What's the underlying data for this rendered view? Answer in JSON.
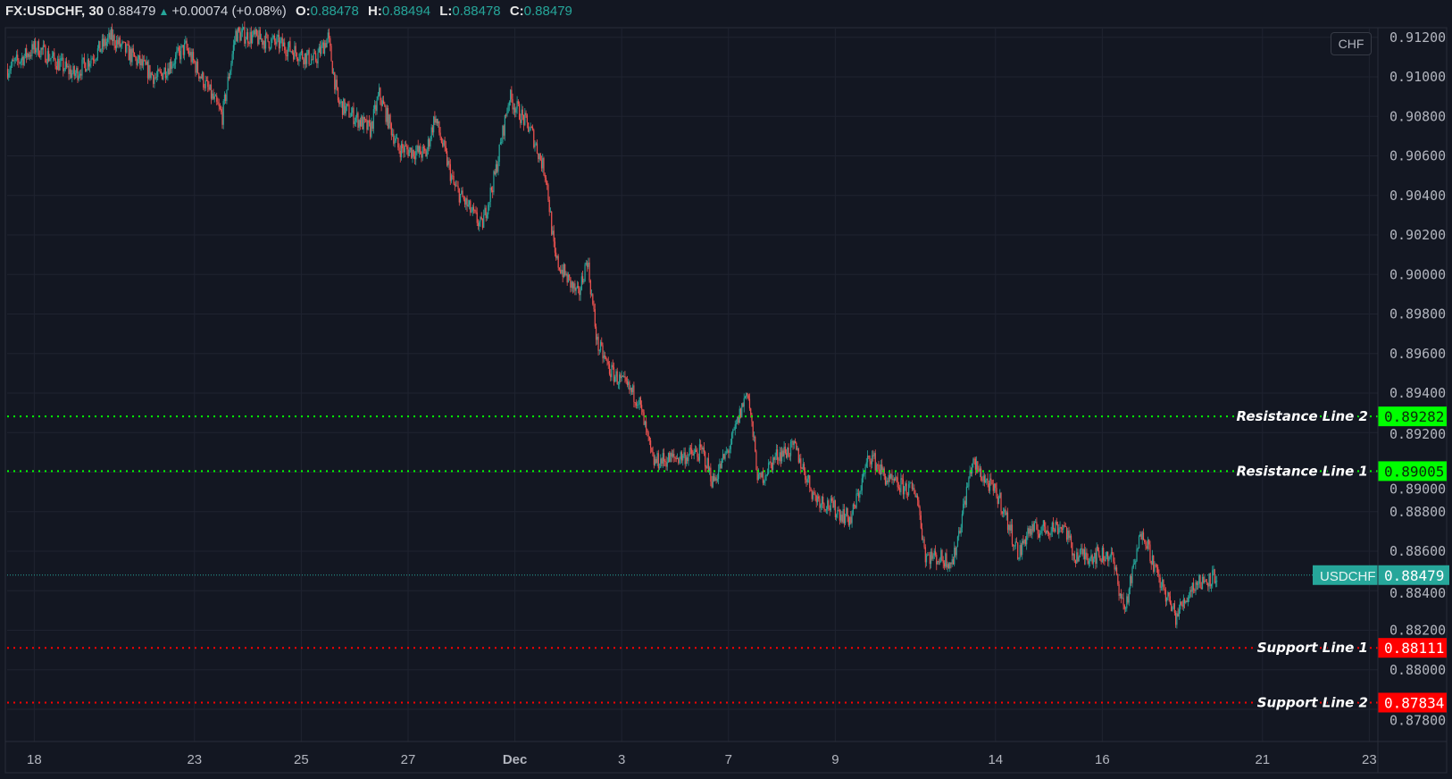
{
  "legend": {
    "symbol": "FX:USDCHF, 30",
    "last": "0.88479",
    "change": "+0.00074 (+0.08%)",
    "open_label": "O:",
    "open": "0.88478",
    "high_label": "H:",
    "high": "0.88494",
    "low_label": "L:",
    "low": "0.88478",
    "close_label": "C:",
    "close": "0.88479"
  },
  "currency_button": "CHF",
  "colors": {
    "background": "#131722",
    "up": "#26a69a",
    "down": "#ef5350",
    "resistance": "#00ff00",
    "support": "#ff0000",
    "last_price": "#26a69a"
  },
  "chart_data": {
    "type": "candlestick",
    "interval": "30",
    "symbol": "USDCHF",
    "ylim": [
      0.8775,
      0.9132
    ],
    "grid": true,
    "y_ticks": [
      "0.91200",
      "0.91000",
      "0.90800",
      "0.90600",
      "0.90400",
      "0.90200",
      "0.90000",
      "0.89800",
      "0.89600",
      "0.89400",
      "0.89200",
      "0.89000",
      "0.88800",
      "0.88600",
      "0.88400",
      "0.88200",
      "0.88000",
      "0.87800"
    ],
    "x_ticks": [
      "18",
      "23",
      "25",
      "27",
      "Dec",
      "3",
      "7",
      "9",
      "14",
      "16",
      "21",
      "23"
    ],
    "price_path": [
      [
        "11-17 12:00",
        0.9104
      ],
      [
        "11-18 01:00",
        0.9115
      ],
      [
        "11-18 18:00",
        0.9101
      ],
      [
        "11-19 10:30",
        0.912
      ],
      [
        "11-20 07:00",
        0.9099
      ],
      [
        "11-20 20:00",
        0.9115
      ],
      [
        "11-23 12:30",
        0.908
      ],
      [
        "11-23 18:30",
        0.9122
      ],
      [
        "11-24 13:30",
        0.9117
      ],
      [
        "11-25 06:00",
        0.9108
      ],
      [
        "11-25 12:00",
        0.912
      ],
      [
        "11-25 16:30",
        0.9087
      ],
      [
        "11-26 07:00",
        0.9073
      ],
      [
        "11-26 11:00",
        0.9091
      ],
      [
        "11-26 19:30",
        0.9064
      ],
      [
        "11-27 08:00",
        0.9061
      ],
      [
        "11-27 12:00",
        0.908
      ],
      [
        "11-27 20:30",
        0.9045
      ],
      [
        "11-30 09:00",
        0.9024
      ],
      [
        "11-30 15:00",
        0.905
      ],
      [
        "11-30 21:30",
        0.909
      ],
      [
        "12-01 07:30",
        0.9072
      ],
      [
        "12-01 14:00",
        0.905
      ],
      [
        "12-01 18:00",
        0.9008
      ],
      [
        "12-02 04:30",
        0.8989
      ],
      [
        "12-02 08:30",
        0.9008
      ],
      [
        "12-02 13:00",
        0.8965
      ],
      [
        "12-02 19:00",
        0.8951
      ],
      [
        "12-03 07:30",
        0.8937
      ],
      [
        "12-03 14:00",
        0.8905
      ],
      [
        "12-04 12:30",
        0.891
      ],
      [
        "12-04 17:00",
        0.8895
      ],
      [
        "12-07 01:00",
        0.8914
      ],
      [
        "12-07 08:30",
        0.8942
      ],
      [
        "12-07 13:30",
        0.8895
      ],
      [
        "12-07 22:00",
        0.8909
      ],
      [
        "12-08 06:00",
        0.8912
      ],
      [
        "12-08 14:30",
        0.8888
      ],
      [
        "12-09 07:00",
        0.8876
      ],
      [
        "12-09 15:30",
        0.8909
      ],
      [
        "12-10 00:00",
        0.8895
      ],
      [
        "12-10 12:30",
        0.889
      ],
      [
        "12-10 16:30",
        0.8858
      ],
      [
        "12-11 05:00",
        0.8855
      ],
      [
        "12-11 13:30",
        0.8905
      ],
      [
        "12-14 02:00",
        0.8886
      ],
      [
        "12-14 10:30",
        0.8858
      ],
      [
        "12-14 14:30",
        0.887
      ],
      [
        "12-15 07:00",
        0.8873
      ],
      [
        "12-15 11:00",
        0.8858
      ],
      [
        "12-16 04:00",
        0.8858
      ],
      [
        "12-16 10:00",
        0.883
      ],
      [
        "12-16 18:00",
        0.8872
      ],
      [
        "12-17 00:30",
        0.8848
      ],
      [
        "12-17 09:00",
        0.8827
      ],
      [
        "12-17 17:00",
        0.8843
      ],
      [
        "12-18 03:30",
        0.88479
      ]
    ],
    "last_price": {
      "label": "USDCHF",
      "value": "0.88479",
      "price": 0.88479
    },
    "levels": [
      {
        "name": "Resistance Line 2",
        "value": "0.89282",
        "price": 0.89282,
        "kind": "resistance"
      },
      {
        "name": "Resistance Line 1",
        "value": "0.89005",
        "price": 0.89005,
        "kind": "resistance"
      },
      {
        "name": "Support Line 1",
        "value": "0.88111",
        "price": 0.88111,
        "kind": "support"
      },
      {
        "name": "Support Line 2",
        "value": "0.87834",
        "price": 0.87834,
        "kind": "support"
      }
    ]
  }
}
